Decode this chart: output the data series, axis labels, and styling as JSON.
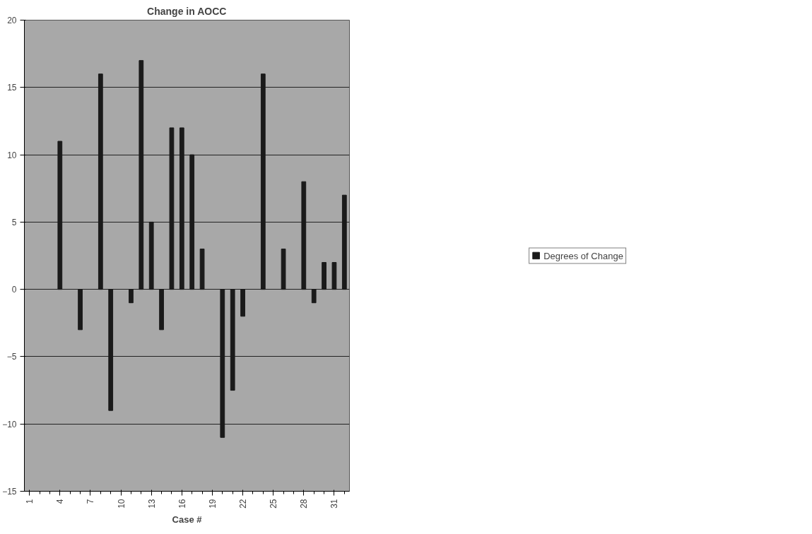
{
  "chart_data": {
    "type": "bar",
    "title": "Change in AOCC",
    "xlabel": "Case #",
    "categories": [
      "1",
      null,
      null,
      "4",
      null,
      null,
      "7",
      null,
      null,
      "10",
      null,
      null,
      "13",
      null,
      null,
      "16",
      null,
      null,
      "19",
      null,
      null,
      "22",
      null,
      null,
      "25",
      null,
      null,
      "28",
      null,
      null,
      "31",
      null
    ],
    "series": [
      {
        "name": "Degrees of Change",
        "color": "#1a1a1a",
        "values": [
          null,
          null,
          null,
          11,
          null,
          -3,
          null,
          16,
          -9,
          null,
          -1,
          17,
          5,
          -3,
          12,
          12,
          10,
          3,
          null,
          -11,
          -7.5,
          -2,
          null,
          16,
          null,
          3,
          null,
          8,
          -1,
          2,
          2,
          7
        ]
      }
    ],
    "ylim": [
      -15,
      20
    ],
    "yticks": [
      -15,
      -10,
      -5,
      0,
      5,
      10,
      15,
      20
    ],
    "grid": "y",
    "legend": "right"
  }
}
